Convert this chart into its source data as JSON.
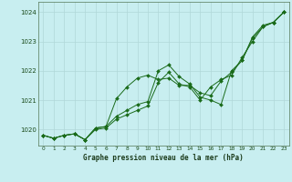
{
  "title": "Graphe pression niveau de la mer (hPa)",
  "bg_color": "#c8eef0",
  "grid_color": "#b0d8d8",
  "line_color": "#1a6b1a",
  "x_ticks": [
    0,
    1,
    2,
    3,
    4,
    5,
    6,
    7,
    8,
    9,
    10,
    11,
    12,
    13,
    14,
    15,
    16,
    17,
    18,
    19,
    20,
    21,
    22,
    23
  ],
  "ylim": [
    1019.45,
    1024.35
  ],
  "y_ticks": [
    1020,
    1021,
    1022,
    1023,
    1024
  ],
  "series": [
    [
      1019.8,
      1019.7,
      1019.8,
      1019.85,
      1019.65,
      1020.05,
      1020.1,
      1020.45,
      1020.65,
      1020.85,
      1020.95,
      1022.0,
      1022.2,
      1021.8,
      1021.55,
      1021.1,
      1021.0,
      1020.85,
      1022.0,
      1022.35,
      1023.1,
      1023.5,
      1023.65,
      1024.0
    ],
    [
      1019.8,
      1019.7,
      1019.8,
      1019.85,
      1019.65,
      1020.05,
      1020.1,
      1021.05,
      1021.45,
      1021.75,
      1021.85,
      1021.7,
      1021.75,
      1021.5,
      1021.5,
      1021.25,
      1021.15,
      1021.65,
      1021.95,
      1022.35,
      1023.15,
      1023.55,
      1023.65,
      1024.0
    ],
    [
      1019.8,
      1019.7,
      1019.8,
      1019.85,
      1019.65,
      1020.0,
      1020.05,
      1020.35,
      1020.5,
      1020.65,
      1020.8,
      1021.6,
      1021.95,
      1021.55,
      1021.45,
      1021.0,
      1021.45,
      1021.7,
      1021.85,
      1022.45,
      1023.0,
      1023.5,
      1023.65,
      1024.0
    ]
  ]
}
